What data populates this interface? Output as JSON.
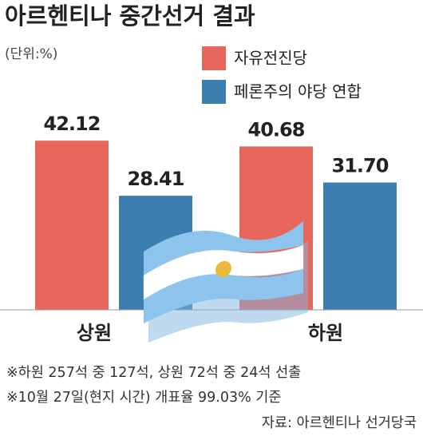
{
  "chart_data": {
    "type": "bar",
    "title": "아르헨티나 중간선거 결과",
    "unit": "(단위:%)",
    "categories": [
      "상원",
      "하원"
    ],
    "series": [
      {
        "name": "자유전진당",
        "color": "#e8675d",
        "values": [
          42.12,
          40.68
        ]
      },
      {
        "name": "페론주의 야당 연합",
        "color": "#3b7fb0",
        "values": [
          28.41,
          31.7
        ],
        "value_labels": [
          "28.41",
          "31.70"
        ]
      }
    ],
    "notes": [
      "※하원 257석 중 127석, 상원 72석 중 24석 선출",
      "※10월 27일(현지 시간) 개표율 99.03% 기준"
    ],
    "source": "자료: 아르헨티나 선거당국"
  }
}
